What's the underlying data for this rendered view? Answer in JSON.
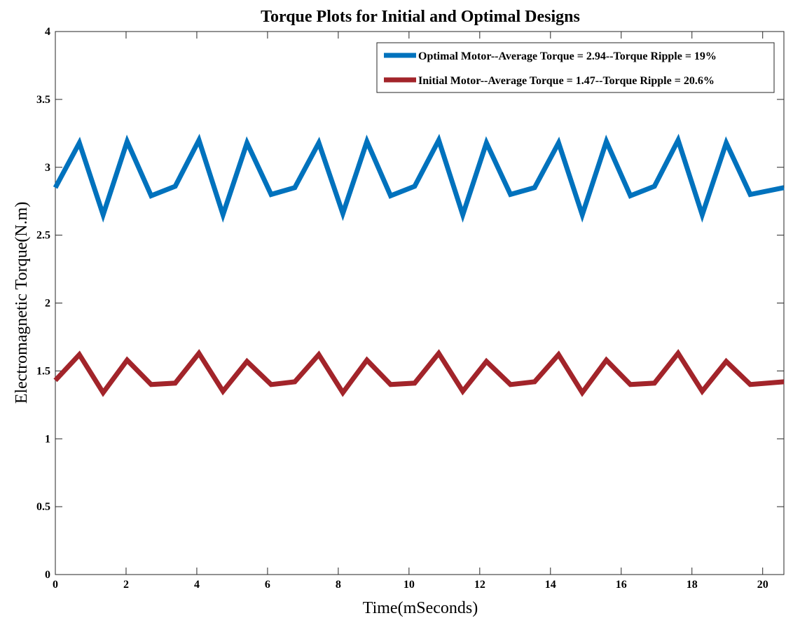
{
  "chart_data": {
    "type": "line",
    "title": "Torque Plots for Initial and Optimal Designs",
    "xlabel": "Time(mSeconds)",
    "ylabel": "Electromagnetic Torque(N.m)",
    "xlim": [
      0,
      20.6
    ],
    "ylim": [
      0,
      4
    ],
    "xticks": [
      0,
      2,
      4,
      6,
      8,
      10,
      12,
      14,
      16,
      18,
      20
    ],
    "yticks": [
      0,
      0.5,
      1,
      1.5,
      2,
      2.5,
      3,
      3.5,
      4
    ],
    "ytick_labels": [
      "0",
      "0.5",
      "1",
      "1.5",
      "2",
      "2.5",
      "3",
      "3.5",
      "4"
    ],
    "grid": false,
    "legend_position": "top-right",
    "x": [
      0,
      0.68,
      1.35,
      2.03,
      2.71,
      3.39,
      4.06,
      4.74,
      5.42,
      6.1,
      6.77,
      7.45,
      8.13,
      8.81,
      9.48,
      10.16,
      10.84,
      11.52,
      12.19,
      12.87,
      13.55,
      14.23,
      14.9,
      15.58,
      16.26,
      16.94,
      17.61,
      18.29,
      18.97,
      19.65,
      20.6
    ],
    "series": [
      {
        "name": "Optimal Motor--Average Torque = 2.94--Torque Ripple = 19%",
        "color": "#0072BD",
        "values": [
          2.85,
          3.18,
          2.65,
          3.19,
          2.79,
          2.86,
          3.2,
          2.65,
          3.18,
          2.8,
          2.85,
          3.18,
          2.66,
          3.19,
          2.79,
          2.86,
          3.2,
          2.65,
          3.18,
          2.8,
          2.85,
          3.18,
          2.65,
          3.19,
          2.79,
          2.86,
          3.2,
          2.65,
          3.18,
          2.8,
          2.85
        ]
      },
      {
        "name": "Initial Motor--Average Torque = 1.47--Torque Ripple = 20.6%",
        "color": "#A2242A",
        "values": [
          1.43,
          1.62,
          1.34,
          1.58,
          1.4,
          1.41,
          1.63,
          1.35,
          1.57,
          1.4,
          1.42,
          1.62,
          1.34,
          1.58,
          1.4,
          1.41,
          1.63,
          1.35,
          1.57,
          1.4,
          1.42,
          1.62,
          1.34,
          1.58,
          1.4,
          1.41,
          1.63,
          1.35,
          1.57,
          1.4,
          1.42
        ]
      }
    ]
  }
}
